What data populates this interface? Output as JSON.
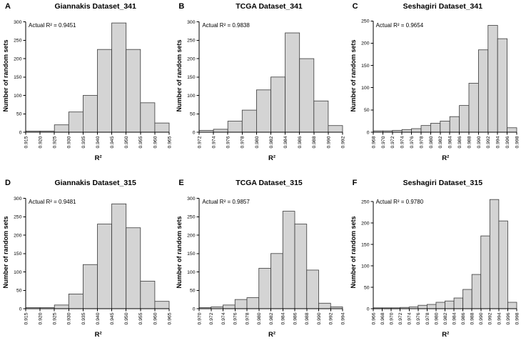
{
  "figure": {
    "background": "#ffffff",
    "bar_fill": "#d4d4d4",
    "bar_stroke": "#3a3a3a",
    "axis_color": "#000000"
  },
  "chart_data": [
    {
      "type": "bar",
      "panel": "A",
      "title": "Giannakis Dataset_341",
      "annotation": "Actual R² = 0.9451",
      "xlabel": "R²",
      "ylabel": "Number of random sets",
      "bin_width": 0.005,
      "tick_labels": [
        "0.915",
        "0.920",
        "0.925",
        "0.930",
        "0.935",
        "0.940",
        "0.945",
        "0.950",
        "0.955",
        "0.960",
        "0.965"
      ],
      "values": [
        3,
        3,
        20,
        55,
        100,
        225,
        297,
        225,
        80,
        25
      ],
      "yticks": [
        0,
        50,
        100,
        150,
        200,
        250,
        300
      ],
      "ymax": 305,
      "grid": false,
      "legend": false
    },
    {
      "type": "bar",
      "panel": "B",
      "title": "TCGA Dataset_341",
      "annotation": "Actual R² = 0.9838",
      "xlabel": "R²",
      "ylabel": "Number of random sets",
      "bin_width": 0.002,
      "tick_labels": [
        "0.972",
        "0.974",
        "0.976",
        "0.978",
        "0.980",
        "0.982",
        "0.984",
        "0.986",
        "0.988",
        "0.990",
        "0.992"
      ],
      "values": [
        5,
        8,
        30,
        60,
        115,
        150,
        270,
        200,
        85,
        18
      ],
      "yticks": [
        0,
        50,
        100,
        150,
        200,
        250,
        300
      ],
      "ymax": 305,
      "grid": false,
      "legend": false
    },
    {
      "type": "bar",
      "panel": "C",
      "title": "Seshagiri Dataset_341",
      "annotation": "Actual R² = 0.9654",
      "xlabel": "R²",
      "ylabel": "Number of random sets",
      "bin_width": 0.002,
      "tick_labels": [
        "0.968",
        "0.970",
        "0.972",
        "0.974",
        "0.976",
        "0.978",
        "0.980",
        "0.982",
        "0.984",
        "0.986",
        "0.988",
        "0.990",
        "0.992",
        "0.994",
        "0.996",
        "0.998"
      ],
      "values": [
        3,
        3,
        4,
        6,
        8,
        15,
        20,
        25,
        35,
        60,
        110,
        185,
        240,
        210,
        10
      ],
      "yticks": [
        0,
        50,
        100,
        150,
        200,
        250
      ],
      "ymax": 252,
      "grid": false,
      "legend": false
    },
    {
      "type": "bar",
      "panel": "D",
      "title": "Giannakis Dataset_315",
      "annotation": "Actual R² = 0.9481",
      "xlabel": "R²",
      "ylabel": "Number of random sets",
      "bin_width": 0.005,
      "tick_labels": [
        "0.915",
        "0.920",
        "0.925",
        "0.930",
        "0.935",
        "0.940",
        "0.945",
        "0.950",
        "0.955",
        "0.960",
        "0.965"
      ],
      "values": [
        3,
        3,
        10,
        40,
        120,
        230,
        285,
        220,
        75,
        20
      ],
      "yticks": [
        0,
        50,
        100,
        150,
        200,
        250,
        300
      ],
      "ymax": 305,
      "grid": false,
      "legend": false
    },
    {
      "type": "bar",
      "panel": "E",
      "title": "TCGA Dataset_315",
      "annotation": "Actual R² = 0.9857",
      "xlabel": "R²",
      "ylabel": "Number of random sets",
      "bin_width": 0.002,
      "tick_labels": [
        "0.970",
        "0.972",
        "0.974",
        "0.976",
        "0.978",
        "0.980",
        "0.982",
        "0.984",
        "0.986",
        "0.988",
        "0.990",
        "0.992",
        "0.994"
      ],
      "values": [
        3,
        5,
        10,
        25,
        30,
        110,
        150,
        265,
        230,
        105,
        15,
        5
      ],
      "yticks": [
        0,
        50,
        100,
        150,
        200,
        250,
        300
      ],
      "ymax": 305,
      "grid": false,
      "legend": false
    },
    {
      "type": "bar",
      "panel": "F",
      "title": "Seshagiri Dataset_315",
      "annotation": "Actual R² = 0.9780",
      "xlabel": "R²",
      "ylabel": "Number of random sets",
      "bin_width": 0.002,
      "tick_labels": [
        "0.966",
        "0.968",
        "0.970",
        "0.972",
        "0.974",
        "0.976",
        "0.978",
        "0.980",
        "0.982",
        "0.984",
        "0.986",
        "0.988",
        "0.990",
        "0.992",
        "0.994",
        "0.996",
        "0.998"
      ],
      "values": [
        2,
        2,
        2,
        3,
        4,
        8,
        10,
        15,
        18,
        25,
        45,
        80,
        170,
        255,
        205,
        15
      ],
      "yticks": [
        0,
        50,
        100,
        150,
        200,
        250
      ],
      "ymax": 262,
      "grid": false,
      "legend": false
    }
  ]
}
